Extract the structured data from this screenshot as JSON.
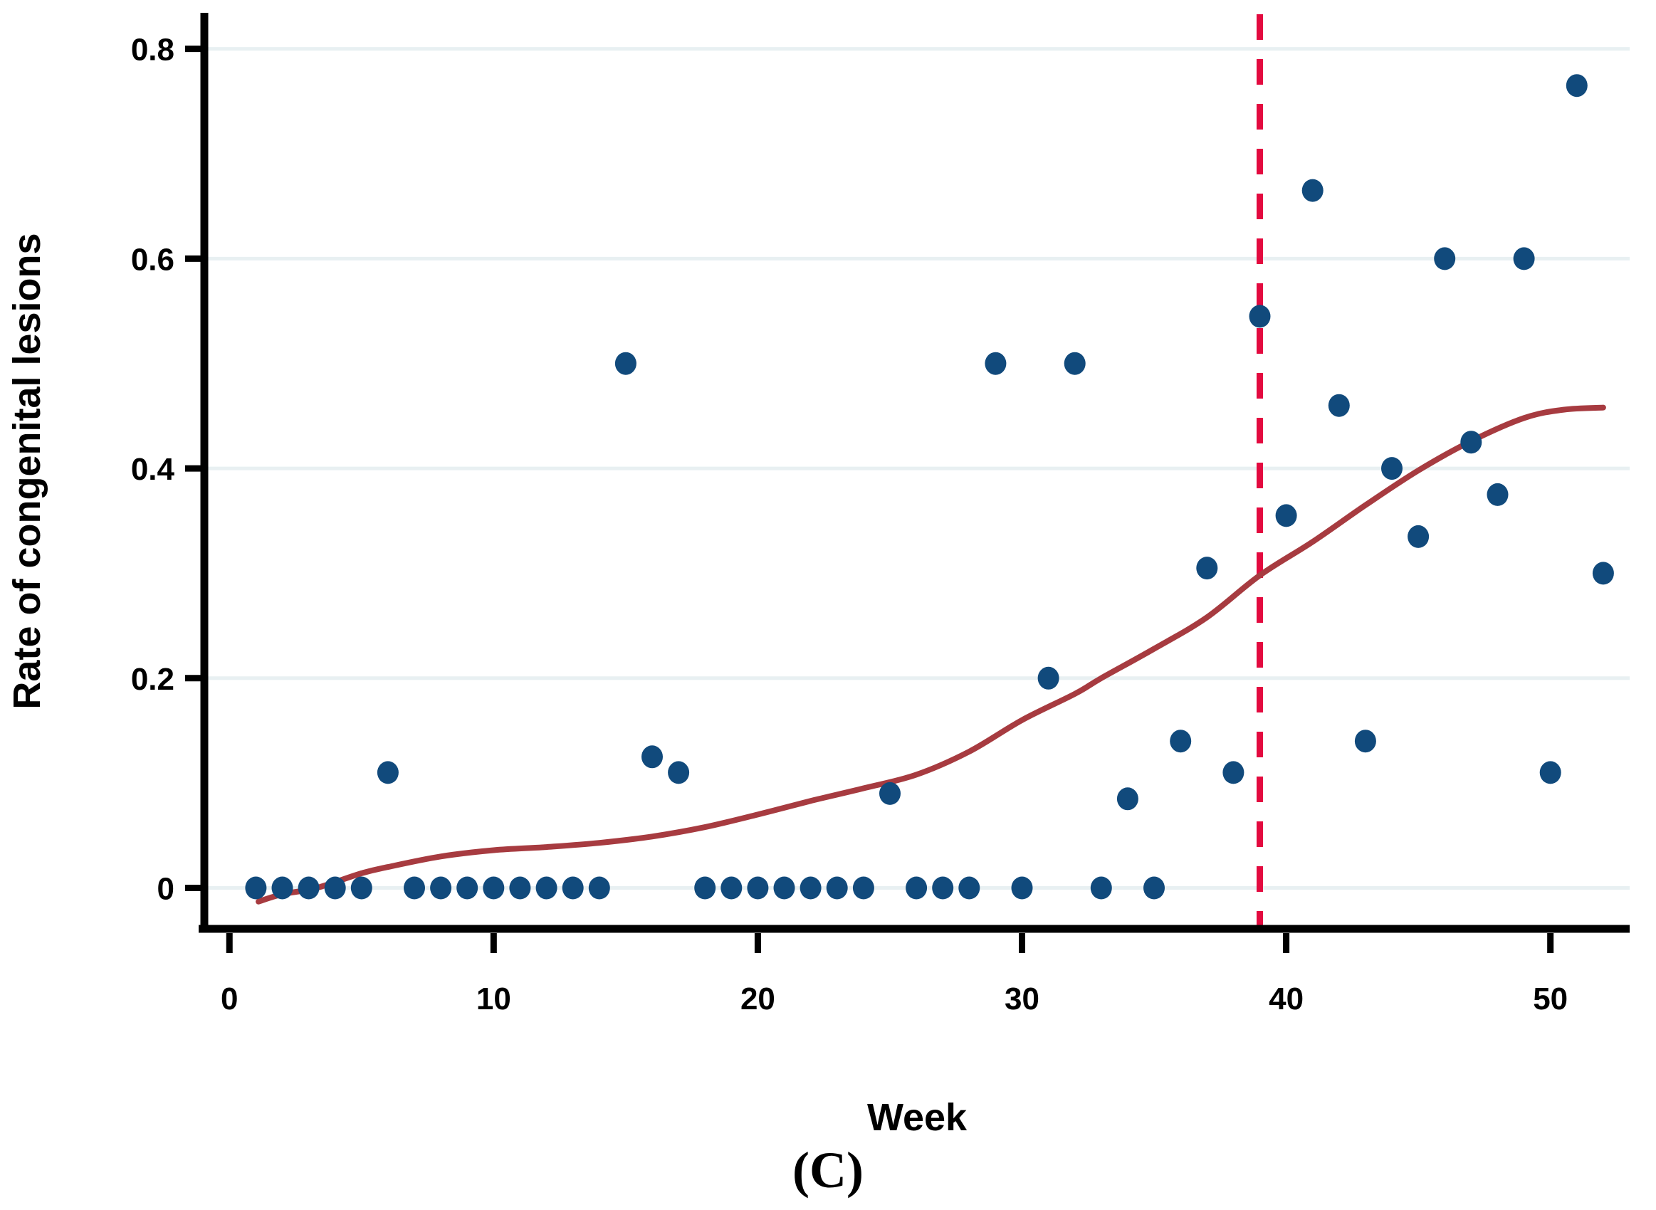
{
  "figure": {
    "caption": "(C)",
    "background": "#ffffff"
  },
  "chart_data": {
    "type": "scatter",
    "title": "",
    "xlabel": "Week",
    "ylabel": "Rate of congenital lesions",
    "x_ticks": [
      0,
      10,
      20,
      30,
      40,
      50
    ],
    "x_tick_labels": [
      "0",
      "10",
      "20",
      "30",
      "40",
      "50"
    ],
    "y_ticks": [
      0,
      0.2,
      0.4,
      0.6,
      0.8
    ],
    "y_tick_labels": [
      "0",
      "0.2",
      "0.4",
      "0.6",
      "0.8"
    ],
    "xlim": [
      -0.95,
      53.0
    ],
    "ylim": [
      -0.039,
      0.833
    ],
    "grid": "horizontal-only",
    "legend": "none",
    "reference_line": {
      "orientation": "vertical",
      "style": "dashed",
      "x": 39,
      "color": "#e30a3f"
    },
    "series": [
      {
        "name": "weekly-rate-points",
        "type": "scatter",
        "color": "#114a7c",
        "points": [
          [
            1,
            0
          ],
          [
            2,
            0
          ],
          [
            3,
            0
          ],
          [
            4,
            0
          ],
          [
            5,
            0
          ],
          [
            6,
            0.11
          ],
          [
            7,
            0
          ],
          [
            8,
            0
          ],
          [
            9,
            0
          ],
          [
            10,
            0
          ],
          [
            11,
            0
          ],
          [
            12,
            0
          ],
          [
            13,
            0
          ],
          [
            14,
            0
          ],
          [
            15,
            0.5
          ],
          [
            16,
            0.125
          ],
          [
            17,
            0.11
          ],
          [
            18,
            0
          ],
          [
            19,
            0
          ],
          [
            20,
            0
          ],
          [
            21,
            0
          ],
          [
            22,
            0
          ],
          [
            23,
            0
          ],
          [
            24,
            0
          ],
          [
            25,
            0.09
          ],
          [
            26,
            0
          ],
          [
            27,
            0
          ],
          [
            28,
            0
          ],
          [
            29,
            0.5
          ],
          [
            30,
            0
          ],
          [
            31,
            0.2
          ],
          [
            32,
            0.5
          ],
          [
            33,
            0
          ],
          [
            34,
            0.085
          ],
          [
            35,
            0
          ],
          [
            36,
            0.14
          ],
          [
            37,
            0.305
          ],
          [
            38,
            0.11
          ],
          [
            39,
            0.545
          ],
          [
            40,
            0.355
          ],
          [
            41,
            0.665
          ],
          [
            42,
            0.46
          ],
          [
            43,
            0.14
          ],
          [
            44,
            0.4
          ],
          [
            45,
            0.335
          ],
          [
            46,
            0.6
          ],
          [
            47,
            0.425
          ],
          [
            48,
            0.375
          ],
          [
            49,
            0.6
          ],
          [
            50,
            0.11
          ],
          [
            51,
            0.765
          ],
          [
            52,
            0.3
          ]
        ]
      },
      {
        "name": "lowess-smooth",
        "type": "line",
        "color": "#a73b40",
        "points": [
          [
            1.1,
            -0.013
          ],
          [
            2,
            -0.006
          ],
          [
            3.3,
            0.0
          ],
          [
            5,
            0.014
          ],
          [
            6,
            0.02
          ],
          [
            8,
            0.03
          ],
          [
            10,
            0.036
          ],
          [
            12,
            0.039
          ],
          [
            14,
            0.043
          ],
          [
            16,
            0.049
          ],
          [
            18,
            0.058
          ],
          [
            20,
            0.07
          ],
          [
            22,
            0.083
          ],
          [
            24,
            0.095
          ],
          [
            26,
            0.108
          ],
          [
            28,
            0.13
          ],
          [
            30,
            0.16
          ],
          [
            32,
            0.185
          ],
          [
            33,
            0.2
          ],
          [
            35,
            0.228
          ],
          [
            37,
            0.258
          ],
          [
            39,
            0.298
          ],
          [
            41,
            0.33
          ],
          [
            43,
            0.365
          ],
          [
            45,
            0.398
          ],
          [
            47,
            0.426
          ],
          [
            49,
            0.448
          ],
          [
            50.5,
            0.456
          ],
          [
            52,
            0.458
          ]
        ]
      }
    ]
  },
  "colors": {
    "marker": "#114a7c",
    "smooth_line": "#a73b40",
    "reference_line": "#e30a3f",
    "gridline": "#e8f0f2",
    "axis": "#000000",
    "background": "#ffffff"
  }
}
